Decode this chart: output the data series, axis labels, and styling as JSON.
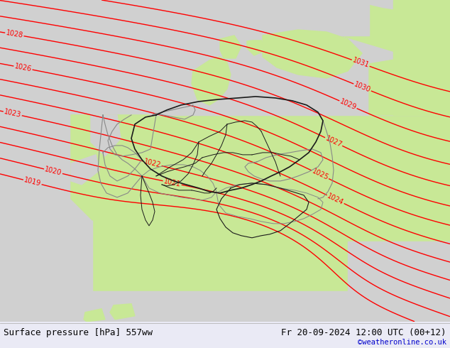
{
  "title_left": "Surface pressure [hPa] 557ww",
  "title_right": "Fr 20-09-2024 12:00 UTC (00+12)",
  "title_right2": "©weatheronline.co.uk",
  "bg_color_green": "#c8e896",
  "bg_color_gray": "#d0d0d0",
  "contour_color": "#ff0000",
  "border_dark": "#1a1a1a",
  "border_gray": "#888888",
  "contour_levels": [
    1019,
    1020,
    1021,
    1022,
    1023,
    1024,
    1025,
    1026,
    1027,
    1028,
    1029,
    1030,
    1031
  ],
  "label_fontsize": 7,
  "footer_fontsize": 9,
  "footer_bg": "#eaeaf5",
  "dpi": 100,
  "figsize": [
    6.34,
    4.9
  ]
}
